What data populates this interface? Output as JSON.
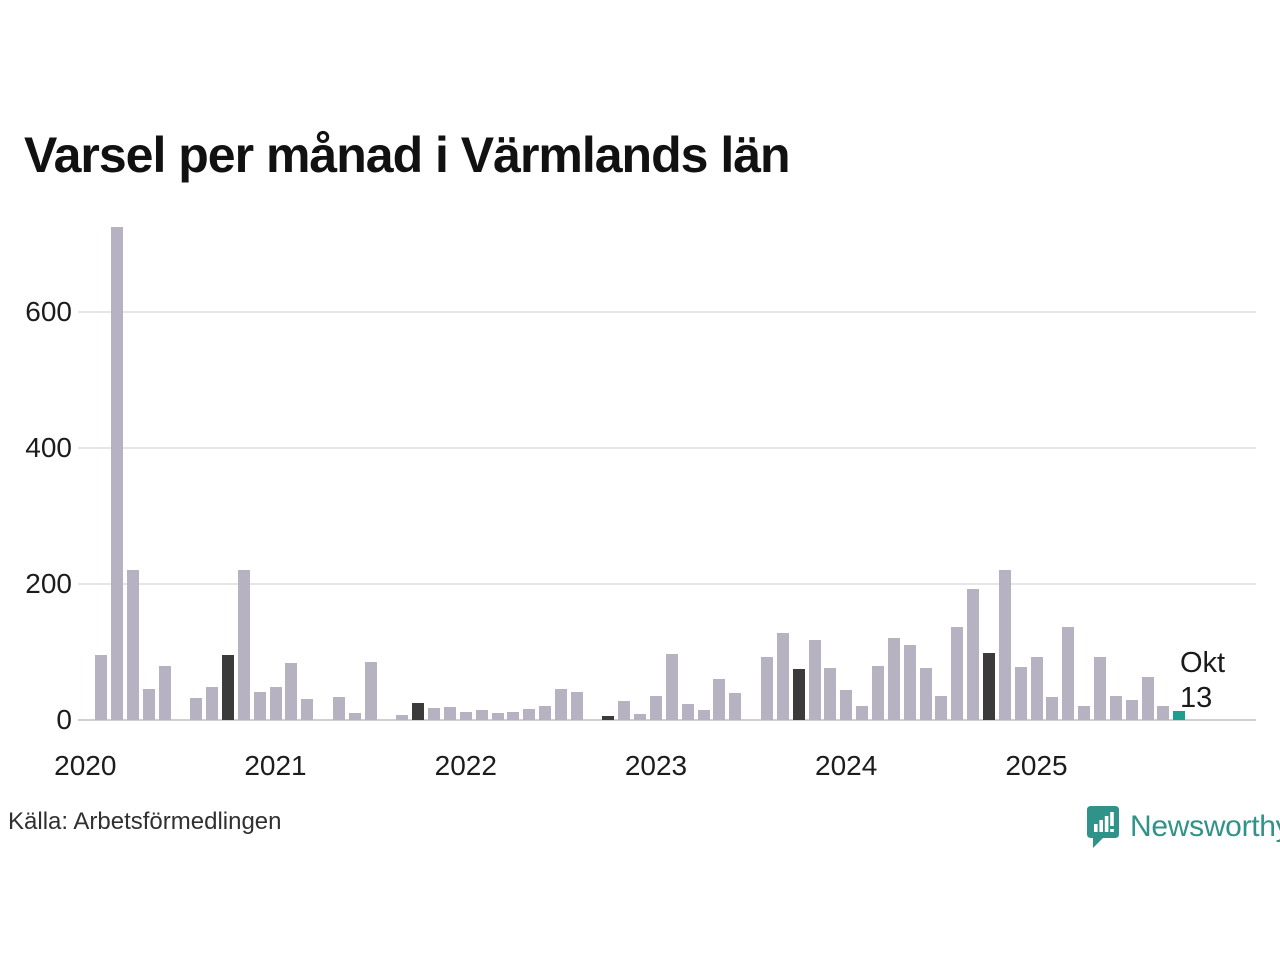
{
  "title": "Varsel per månad i Värmlands län",
  "source": "Källa: Arbetsförmedlingen",
  "annotation": {
    "month_label": "Okt",
    "value_label": "13"
  },
  "branding": {
    "wordmark": "Newsworthy",
    "icon": "newsworthy-speech-bubble-chart-icon"
  },
  "colors": {
    "bar_default": "#b6b2c1",
    "bar_october_highlight": "#3b3b3b",
    "bar_current": "#1e9e8e",
    "gridline": "#e6e6e6",
    "baseline": "#d0d0d0",
    "axis_text": "#1c1c1c",
    "annotation_text": "#1a1a1a",
    "brand_teal": "#31928a"
  },
  "chart_data": {
    "type": "bar",
    "title": "Varsel per månad i Värmlands län",
    "xlabel": "",
    "ylabel": "",
    "grid": "horizontal",
    "legend_position": "none",
    "y_ticks": [
      0,
      200,
      400,
      600
    ],
    "ylim": [
      0,
      760
    ],
    "x_year_tick_labels": [
      "2020",
      "2021",
      "2022",
      "2023",
      "2024",
      "2025"
    ],
    "months": [
      "2020-01",
      "2020-02",
      "2020-03",
      "2020-04",
      "2020-05",
      "2020-06",
      "2020-07",
      "2020-08",
      "2020-09",
      "2020-10",
      "2020-11",
      "2020-12",
      "2021-01",
      "2021-02",
      "2021-03",
      "2021-04",
      "2021-05",
      "2021-06",
      "2021-07",
      "2021-08",
      "2021-09",
      "2021-10",
      "2021-11",
      "2021-12",
      "2022-01",
      "2022-02",
      "2022-03",
      "2022-04",
      "2022-05",
      "2022-06",
      "2022-07",
      "2022-08",
      "2022-09",
      "2022-10",
      "2022-11",
      "2022-12",
      "2023-01",
      "2023-02",
      "2023-03",
      "2023-04",
      "2023-05",
      "2023-06",
      "2023-07",
      "2023-08",
      "2023-09",
      "2023-10",
      "2023-11",
      "2023-12",
      "2024-01",
      "2024-02",
      "2024-03",
      "2024-04",
      "2024-05",
      "2024-06",
      "2024-07",
      "2024-08",
      "2024-09",
      "2024-10",
      "2024-11",
      "2024-12",
      "2025-01",
      "2025-02",
      "2025-03",
      "2025-04",
      "2025-05",
      "2025-06",
      "2025-07",
      "2025-08",
      "2025-09",
      "2025-10"
    ],
    "values": [
      0,
      95,
      725,
      220,
      45,
      80,
      0,
      33,
      48,
      95,
      220,
      41,
      48,
      84,
      31,
      0,
      34,
      10,
      85,
      0,
      7,
      25,
      18,
      19,
      12,
      14,
      11,
      12,
      16,
      20,
      46,
      41,
      0,
      6,
      28,
      9,
      36,
      97,
      23,
      15,
      60,
      40,
      0,
      93,
      128,
      75,
      118,
      76,
      44,
      20,
      79,
      121,
      111,
      76,
      35,
      137,
      193,
      98,
      221,
      78,
      92,
      34,
      137,
      21,
      93,
      35,
      30,
      63,
      21,
      13
    ],
    "highlighted_months": [
      "2020-10",
      "2021-10",
      "2022-10",
      "2023-10",
      "2024-10"
    ],
    "current_month": "2025-10",
    "current_month_annotation": "Okt 13"
  }
}
